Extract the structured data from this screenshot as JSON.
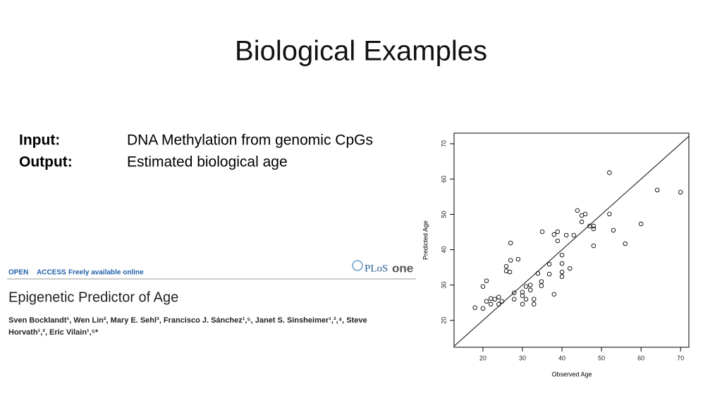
{
  "slide": {
    "title": "Biological Examples",
    "rows": [
      {
        "label": "Input:",
        "text": "DNA Methylation from genomic CpGs"
      },
      {
        "label": "Output:",
        "text": "Estimated biological age"
      }
    ]
  },
  "paper": {
    "open": "OPEN",
    "access": "ACCESS",
    "free": "Freely available online",
    "logo_a": "PLoS",
    "logo_b": "one",
    "title": "Epigenetic Predictor of Age",
    "authors": [
      "Sven Bocklandt¹, Wen Lin², Mary E. Sehl³, Francisco J. Sánchez¹,⁵, Janet S. Sinsheimer¹,²,⁴, Steve",
      "Horvath¹,², Eric Vilain¹,⁵*"
    ]
  },
  "chart_data": {
    "type": "scatter",
    "x_label": "Observed Age",
    "y_label": "Predicted Age",
    "color": "#000000",
    "x": [
      18.0,
      20,
      20,
      20.9,
      20.9,
      22,
      22,
      23,
      24,
      24,
      24.8,
      25.9,
      25.9,
      27,
      26.8,
      27,
      27.9,
      27.9,
      28.9,
      30,
      30,
      30,
      30.9,
      30.9,
      32,
      32,
      32.9,
      32.9,
      33.9,
      34.8,
      34.8,
      35,
      36.8,
      36.8,
      38,
      38,
      38.9,
      38.9,
      40,
      40,
      40,
      40,
      41.1,
      42,
      43,
      43.9,
      45,
      45,
      45.9,
      47,
      48,
      48,
      48,
      52,
      52,
      53,
      56,
      60,
      64.1,
      70
    ],
    "values": [
      23.6,
      29.6,
      23.4,
      31.2,
      25.4,
      26.2,
      24.6,
      26,
      26.6,
      24.6,
      25.4,
      35.3,
      34,
      37,
      33.7,
      41.9,
      26,
      27.8,
      37.3,
      24.6,
      28,
      27,
      29.6,
      26,
      30,
      28.6,
      24.6,
      26,
      33.3,
      31,
      29.8,
      45.1,
      35.9,
      33.1,
      27.4,
      44.3,
      45.1,
      42.5,
      36.1,
      38.5,
      33.7,
      32.4,
      44.1,
      34.7,
      44.1,
      51.1,
      49.7,
      47.9,
      50.1,
      46.7,
      45.9,
      46.7,
      41.1,
      61.8,
      50.1,
      45.5,
      41.7,
      47.3,
      56.9,
      56.3
    ],
    "xlim": [
      12.7,
      72.1
    ],
    "ylim": [
      12.4,
      73.0
    ],
    "xticks": [
      20,
      30,
      40,
      50,
      60,
      70
    ],
    "yticks": [
      20,
      30,
      40,
      50,
      60,
      70
    ]
  }
}
